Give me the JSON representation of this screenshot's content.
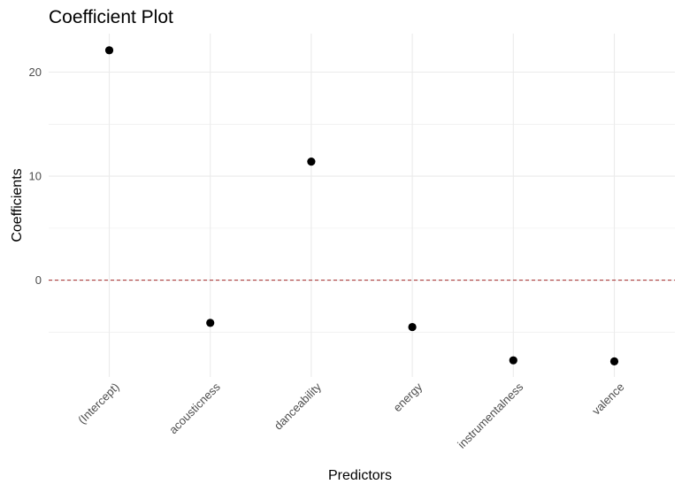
{
  "chart_data": {
    "type": "scatter",
    "title": "Coefficient Plot",
    "xlabel": "Predictors",
    "ylabel": "Coefficients",
    "categories": [
      "(Intercept)",
      "acousticness",
      "danceability",
      "energy",
      "instrumentalness",
      "valence"
    ],
    "values": [
      22.1,
      -4.1,
      11.4,
      -4.5,
      -7.7,
      -7.8
    ],
    "y_ticks": [
      0,
      10,
      20
    ],
    "y_tick_labels": [
      "0",
      "10",
      "20"
    ],
    "ylim": [
      -9.3,
      23.7
    ],
    "reference_line": {
      "y": 0,
      "style": "dashed",
      "color": "#a52a2a"
    },
    "grid": true,
    "legend": "none",
    "colors": {
      "point": "#000000",
      "grid": "#ebebeb",
      "reference_line": "#a52a2a"
    }
  }
}
